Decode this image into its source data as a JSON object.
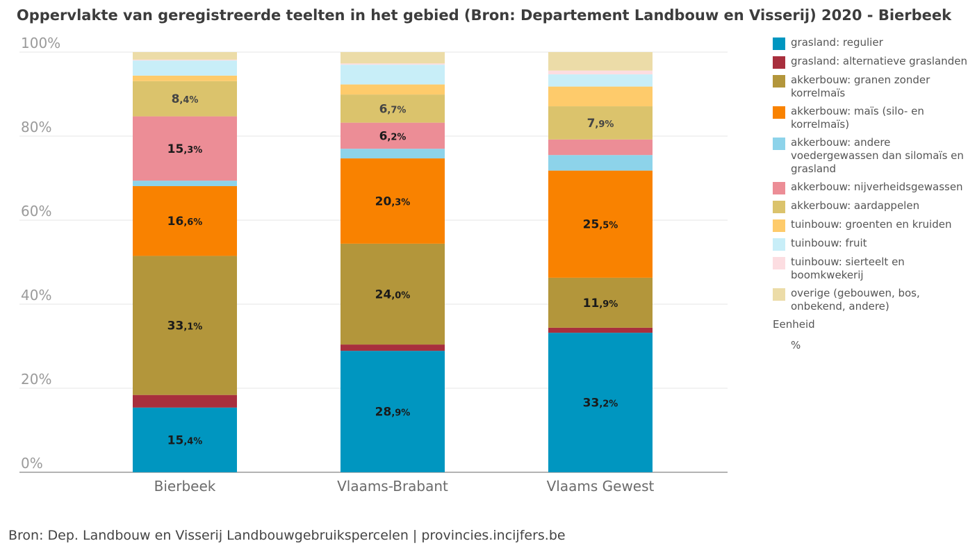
{
  "chart_data": {
    "type": "bar",
    "stacked": true,
    "title": "Oppervlakte van geregistreerde teelten in het gebied (Bron: Departement Landbouw en Visserij) 2020 - Bierbeek",
    "categories": [
      "Bierbeek",
      "Vlaams-Brabant",
      "Vlaams Gewest"
    ],
    "ylim": [
      0,
      100
    ],
    "yticks": [
      "0%",
      "20%",
      "40%",
      "60%",
      "80%",
      "100%"
    ],
    "grid": true,
    "legend_position": "right",
    "series": [
      {
        "name": "grasland: regulier",
        "color": "#0096c0",
        "values": [
          15.4,
          28.9,
          33.2
        ],
        "labels": [
          [
            "15",
            ",4%"
          ],
          [
            "28",
            ",9%"
          ],
          [
            "33",
            ",2%"
          ]
        ]
      },
      {
        "name": "grasland: alternatieve graslanden",
        "color": "#a82f3d",
        "values": [
          3.0,
          1.5,
          1.2
        ],
        "labels": [
          null,
          null,
          null
        ]
      },
      {
        "name": "akkerbouw: granen zonder korrelmaïs",
        "color": "#b3963b",
        "values": [
          33.1,
          24.0,
          11.9
        ],
        "labels": [
          [
            "33",
            ",1%"
          ],
          [
            "24",
            ",0%"
          ],
          [
            "11",
            ",9%"
          ]
        ]
      },
      {
        "name": "akkerbouw: maïs (silo- en korrelmaïs)",
        "color": "#f98200",
        "values": [
          16.6,
          20.3,
          25.5
        ],
        "labels": [
          [
            "16",
            ",6%"
          ],
          [
            "20",
            ",3%"
          ],
          [
            "25",
            ",5%"
          ]
        ]
      },
      {
        "name": "akkerbouw: andere voedergewassen dan silomaïs en grasland",
        "color": "#8dd3ea",
        "values": [
          1.3,
          2.3,
          3.7
        ],
        "labels": [
          null,
          null,
          null
        ]
      },
      {
        "name": "akkerbouw: nijverheidsgewassen",
        "color": "#ec8d96",
        "values": [
          15.3,
          6.2,
          3.7
        ],
        "labels": [
          [
            "15",
            ",3%"
          ],
          [
            "6",
            ",2%"
          ],
          null
        ]
      },
      {
        "name": "akkerbouw: aardappelen",
        "color": "#dbc36c",
        "values": [
          8.4,
          6.7,
          7.9
        ],
        "labels": [
          [
            "8",
            ",4%"
          ],
          [
            "6",
            ",7%"
          ],
          [
            "7",
            ",9%"
          ]
        ]
      },
      {
        "name": "tuinbouw: groenten en kruiden",
        "color": "#fecb6b",
        "values": [
          1.3,
          2.4,
          4.7
        ],
        "labels": [
          null,
          null,
          null
        ]
      },
      {
        "name": "tuinbouw: fruit",
        "color": "#c8eef8",
        "values": [
          3.6,
          4.7,
          2.9
        ],
        "labels": [
          null,
          null,
          null
        ]
      },
      {
        "name": "tuinbouw: sierteelt en boomkwekerij",
        "color": "#fcdde1",
        "values": [
          0.2,
          0.3,
          0.9
        ],
        "labels": [
          null,
          null,
          null
        ]
      },
      {
        "name": "overige (gebouwen, bos, onbekend, andere)",
        "color": "#ecdca8",
        "values": [
          1.8,
          2.7,
          4.4
        ],
        "labels": [
          null,
          null,
          null
        ]
      }
    ]
  },
  "legend": {
    "unit_title": "Eenheid",
    "unit_value": "%"
  },
  "source": "Bron: Dep. Landbouw en Visserij Landbouwgebruikspercelen | provincies.incijfers.be"
}
